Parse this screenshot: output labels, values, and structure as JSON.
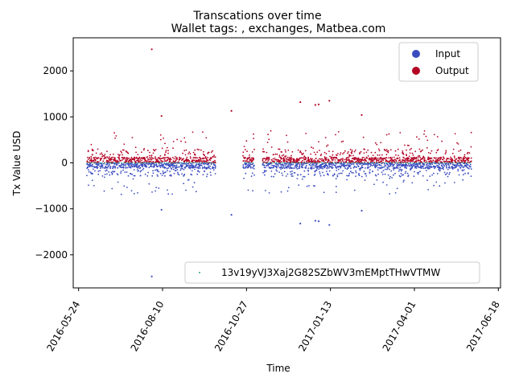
{
  "chart_data": {
    "type": "scatter",
    "title": "Transcations over time",
    "subtitle": "Wallet tags: , exchanges, Matbea.com",
    "xlabel": "Time",
    "ylabel": "Tx Value USD",
    "xlim": [
      "2016-05-19",
      "2017-06-20"
    ],
    "ylim": [
      -2720,
      2720
    ],
    "y_ticks": [
      -2000,
      -1000,
      0,
      1000,
      2000
    ],
    "y_tick_labels": [
      "−2000",
      "−1000",
      "0",
      "1000",
      "2000"
    ],
    "x_ticks": [
      "2016-05-24",
      "2016-08-10",
      "2016-10-27",
      "2017-01-13",
      "2017-04-01",
      "2017-06-18"
    ],
    "grid": false,
    "legend_placement": "top-right",
    "active_range": [
      "2016-06-01",
      "2017-05-24"
    ],
    "gaps": [
      [
        "2016-09-28",
        "2016-10-24"
      ],
      [
        "2016-11-03",
        "2016-11-10"
      ]
    ],
    "series": [
      {
        "name": "Input",
        "color": "#3b4cc0",
        "sign": -1,
        "band": [
          0,
          300
        ],
        "outliers": [
          {
            "x": "2016-07-31",
            "y": -2470
          },
          {
            "x": "2016-12-16",
            "y": -1320
          },
          {
            "x": "2017-01-12",
            "y": -1350
          },
          {
            "x": "2016-10-13",
            "y": -1130
          },
          {
            "x": "2017-02-11",
            "y": -1040
          },
          {
            "x": "2016-08-09",
            "y": -1020
          },
          {
            "x": "2016-12-30",
            "y": -1260
          },
          {
            "x": "2017-01-02",
            "y": -1270
          }
        ]
      },
      {
        "name": "Output",
        "color": "#b40426",
        "sign": 1,
        "band": [
          0,
          300
        ],
        "outliers": [
          {
            "x": "2016-07-31",
            "y": 2470
          },
          {
            "x": "2016-12-16",
            "y": 1320
          },
          {
            "x": "2017-01-12",
            "y": 1350
          },
          {
            "x": "2016-10-13",
            "y": 1130
          },
          {
            "x": "2017-02-11",
            "y": 1040
          },
          {
            "x": "2016-08-09",
            "y": 1020
          },
          {
            "x": "2016-12-30",
            "y": 1260
          },
          {
            "x": "2017-01-02",
            "y": 1270
          }
        ]
      }
    ],
    "legend2": {
      "label": "13v19yVJ3Xaj2G82SZbWV3mEMptTHwVTMW",
      "color": "#2ca58d",
      "placement": "lower-right"
    }
  }
}
